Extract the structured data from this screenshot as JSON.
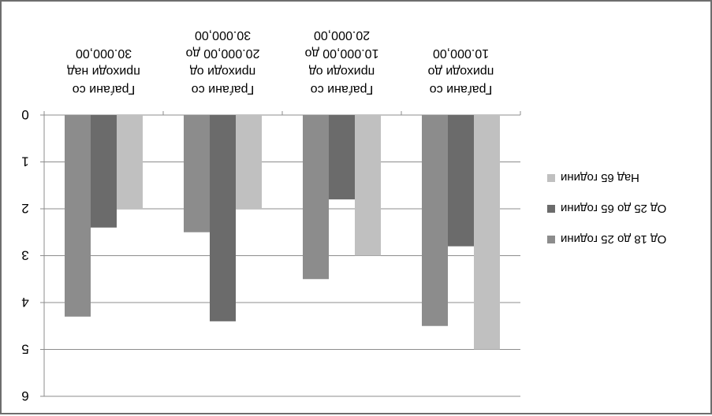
{
  "chart_data": {
    "type": "bar",
    "orientation": "rendered mirrored (upside-down / rotated 180°)",
    "categories": [
      [
        "Граѓани со",
        "приходи над",
        "30.000,00"
      ],
      [
        "Граѓани со",
        "приходи од",
        "20.000,00 до",
        "30.000,00"
      ],
      [
        "Граѓани со",
        "приходи од",
        "10.000,00 до",
        "20.000,00"
      ],
      [
        "Граѓани со",
        "приходи до",
        "10.000,00"
      ]
    ],
    "series": [
      {
        "name": "Од 18 до 25 години",
        "color": "#8c8c8c",
        "values": [
          4.3,
          2.5,
          3.5,
          4.5
        ]
      },
      {
        "name": "Од 25 до 65 години",
        "color": "#6b6b6b",
        "values": [
          2.4,
          4.4,
          1.8,
          2.8
        ]
      },
      {
        "name": "Над 65 години",
        "color": "#c0c0c0",
        "values": [
          2.0,
          2.0,
          3.0,
          5.0
        ]
      }
    ],
    "y_ticks": [
      "0",
      "1",
      "2",
      "3",
      "4",
      "5",
      "6"
    ],
    "ylim": [
      0,
      6
    ],
    "legend_position": "right",
    "grid": true
  }
}
